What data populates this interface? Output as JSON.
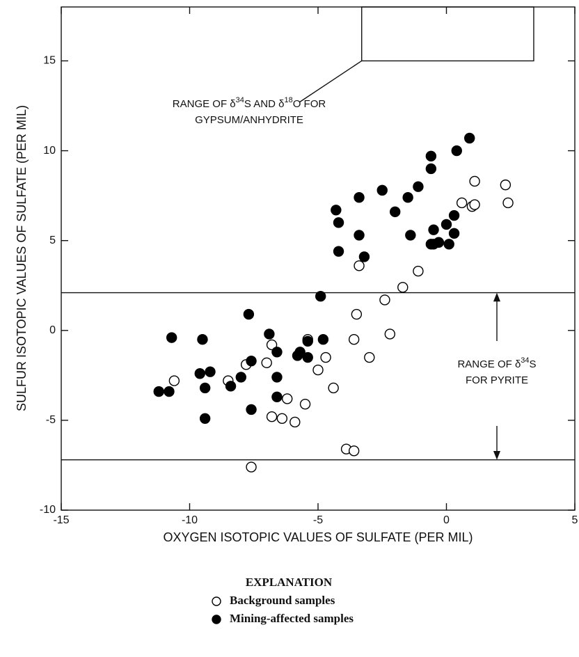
{
  "chart_data": {
    "type": "scatter",
    "xlabel": "OXYGEN ISOTOPIC VALUES OF SULFATE (PER MIL)",
    "ylabel": "SULFUR ISOTOPIC VALUES OF SULFATE (PER MIL)",
    "xlim": [
      -15,
      5
    ],
    "ylim": [
      -10,
      18
    ],
    "xticks": [
      -15,
      -10,
      -5,
      0,
      5
    ],
    "yticks": [
      -10,
      -5,
      0,
      5,
      10,
      15
    ],
    "hlines": [
      2.1,
      -7.2
    ],
    "box": {
      "xlim": [
        -3.3,
        3.4
      ],
      "ylim": [
        15,
        18
      ]
    },
    "annotations": [
      {
        "lines": [
          [
            {
              "text": "RANGE OF δ"
            },
            {
              "text": "34",
              "sup": true
            },
            {
              "text": "S AND δ"
            },
            {
              "text": "18",
              "sup": true
            },
            {
              "text": "O FOR"
            }
          ],
          [
            {
              "text": "GYPSUM/ANHYDRITE"
            }
          ]
        ]
      },
      {
        "lines": [
          [
            {
              "text": "RANGE OF δ"
            },
            {
              "text": "34",
              "sup": true
            },
            {
              "text": "S"
            }
          ],
          [
            {
              "text": "FOR PYRITE"
            }
          ]
        ]
      }
    ],
    "legend_title": "EXPLANATION",
    "series": [
      {
        "name": "Background samples",
        "filled": false,
        "color": "#000000",
        "x": [
          -10.6,
          -8.5,
          -7.8,
          -7.0,
          -6.8,
          -6.8,
          -6.4,
          -6.2,
          -5.9,
          -5.5,
          -5.4,
          -5.0,
          -4.7,
          -4.4,
          -3.9,
          -3.6,
          -7.6,
          -3.6,
          -3.5,
          -3.4,
          -3.0,
          -2.4,
          -2.2,
          -1.7,
          -1.1,
          0.6,
          1.0,
          1.1,
          1.1,
          2.3,
          2.4
        ],
        "y": [
          -2.8,
          -2.8,
          -1.9,
          -1.8,
          -0.8,
          -4.8,
          -4.9,
          -3.8,
          -5.1,
          -4.1,
          -0.5,
          -2.2,
          -1.5,
          -3.2,
          -6.6,
          -6.7,
          -7.6,
          -0.5,
          0.9,
          3.6,
          -1.5,
          1.7,
          -0.2,
          2.4,
          3.3,
          7.1,
          6.9,
          7.0,
          8.3,
          8.1,
          7.1
        ]
      },
      {
        "name": "Mining-affected samples",
        "filled": true,
        "color": "#000000",
        "x": [
          -11.2,
          -10.8,
          -10.7,
          -9.6,
          -9.5,
          -9.4,
          -9.4,
          -9.2,
          -8.4,
          -8.0,
          -7.7,
          -7.6,
          -7.6,
          -6.9,
          -6.6,
          -6.6,
          -6.6,
          -5.8,
          -5.7,
          -5.4,
          -5.4,
          -4.9,
          -4.8,
          -4.3,
          -4.2,
          -4.2,
          -3.4,
          -3.4,
          -3.2,
          -2.5,
          -2.0,
          -1.5,
          -1.4,
          -1.1,
          -0.6,
          -0.6,
          -0.5,
          -0.6,
          -0.5,
          -0.3,
          0.0,
          0.1,
          0.3,
          0.3,
          0.4,
          0.9
        ],
        "y": [
          -3.4,
          -3.4,
          -0.4,
          -2.4,
          -0.5,
          -3.2,
          -4.9,
          -2.3,
          -3.1,
          -2.6,
          0.9,
          -1.7,
          -4.4,
          -0.2,
          -1.2,
          -2.6,
          -3.7,
          -1.4,
          -1.2,
          -0.6,
          -1.5,
          1.9,
          -0.5,
          6.7,
          6.0,
          4.4,
          7.4,
          5.3,
          4.1,
          7.8,
          6.6,
          7.4,
          5.3,
          8.0,
          9.7,
          9.0,
          5.6,
          4.8,
          4.8,
          4.9,
          5.9,
          4.8,
          5.4,
          6.4,
          10.0,
          10.7
        ]
      }
    ]
  }
}
